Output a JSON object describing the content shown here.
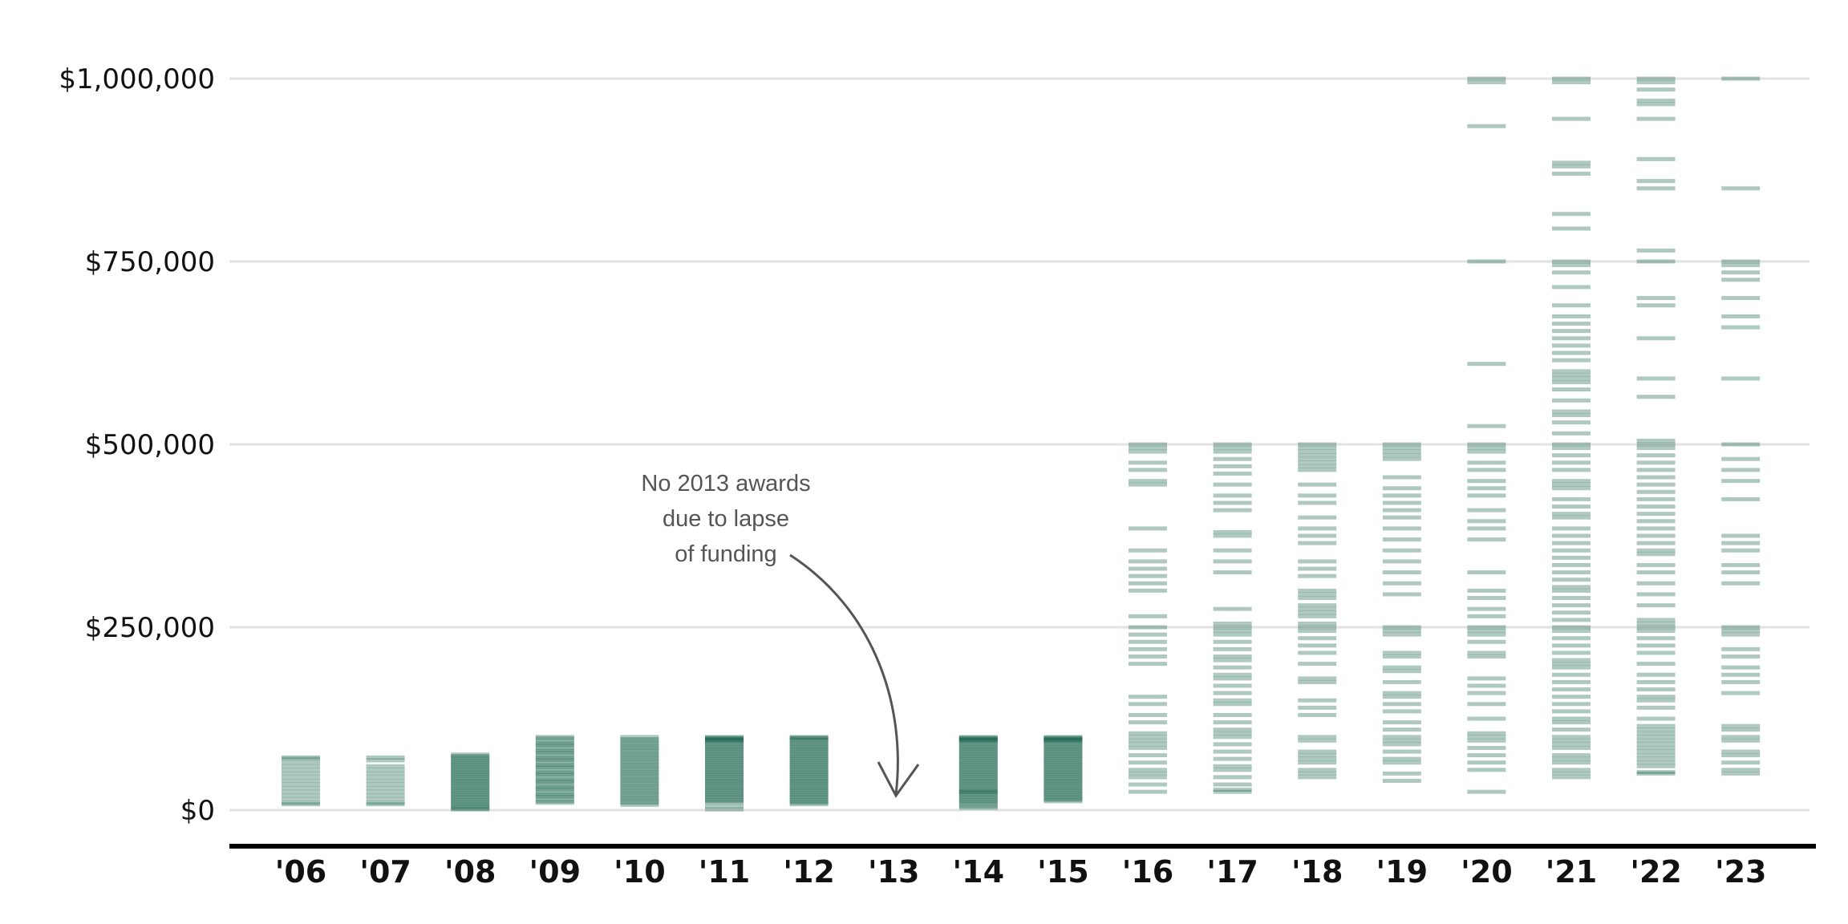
{
  "chart_data": {
    "type": "strip",
    "categories": [
      "'06",
      "'07",
      "'08",
      "'09",
      "'10",
      "'11",
      "'12",
      "'13",
      "'14",
      "'15",
      "'16",
      "'17",
      "'18",
      "'19",
      "'20",
      "'21",
      "'22",
      "'23"
    ],
    "yticks": [
      {
        "value": 0,
        "label": "$0"
      },
      {
        "value": 250000,
        "label": "$250,000"
      },
      {
        "value": 500000,
        "label": "$500,000"
      },
      {
        "value": 750000,
        "label": "$750,000"
      },
      {
        "value": 1000000,
        "label": "$1,000,000"
      }
    ],
    "ylim": [
      -50000,
      1020000
    ],
    "grid": true,
    "color": "#0b5a43",
    "annotation": {
      "lines": [
        "No 2013 awards",
        "due to lapse",
        "of funding"
      ],
      "category": "'13"
    },
    "series": [
      {
        "category": "'06",
        "values": [
          72000,
          70000,
          65000,
          60000,
          55000,
          50000,
          45000,
          40000,
          35000,
          30000,
          25000,
          20000,
          15000,
          10000,
          8000
        ]
      },
      {
        "category": "'07",
        "values": [
          72000,
          68000,
          60000,
          55000,
          50000,
          45000,
          40000,
          35000,
          30000,
          25000,
          20000,
          15000,
          10000,
          8000
        ]
      },
      {
        "category": "'08",
        "values": [
          76000,
          74000,
          72000,
          70000,
          68000,
          66000,
          64000,
          62000,
          60000,
          58000,
          56000,
          54000,
          52000,
          50000,
          48000,
          46000,
          44000,
          42000,
          40000,
          38000,
          36000,
          34000,
          32000,
          30000,
          28000,
          26000,
          24000,
          22000,
          20000,
          18000,
          16000,
          14000,
          12000,
          10000,
          8000,
          6000,
          4000,
          2000,
          1000
        ]
      },
      {
        "category": "'09",
        "values": [
          100000,
          98000,
          95000,
          92000,
          90000,
          88000,
          85000,
          82000,
          80000,
          78000,
          75000,
          72000,
          70000,
          68000,
          65000,
          62000,
          60000,
          58000,
          55000,
          52000,
          50000,
          48000,
          45000,
          42000,
          40000,
          38000,
          35000,
          32000,
          30000,
          28000,
          25000,
          22000,
          20000,
          18000,
          15000,
          12000,
          10000
        ]
      },
      {
        "category": "'10",
        "values": [
          100000,
          97000,
          95000,
          92000,
          90000,
          87000,
          85000,
          82000,
          80000,
          77000,
          75000,
          72000,
          70000,
          67000,
          65000,
          62000,
          60000,
          57000,
          55000,
          52000,
          50000,
          47000,
          45000,
          42000,
          40000,
          37000,
          35000,
          32000,
          30000,
          27000,
          25000,
          22000,
          20000,
          17000,
          15000,
          12000,
          10000,
          7000
        ]
      },
      {
        "category": "'11",
        "values": [
          100000,
          99000,
          98000,
          97000,
          96000,
          95000,
          94000,
          92000,
          90000,
          88000,
          86000,
          84000,
          82000,
          80000,
          78000,
          76000,
          74000,
          72000,
          70000,
          68000,
          66000,
          64000,
          62000,
          60000,
          58000,
          56000,
          54000,
          52000,
          50000,
          48000,
          46000,
          44000,
          42000,
          40000,
          38000,
          36000,
          34000,
          32000,
          30000,
          28000,
          26000,
          24000,
          22000,
          20000,
          18000,
          16000,
          14000,
          12000,
          10000,
          5000,
          1000
        ]
      },
      {
        "category": "'12",
        "values": [
          100000,
          99000,
          98000,
          96000,
          94000,
          92000,
          90000,
          88000,
          86000,
          84000,
          82000,
          80000,
          78000,
          76000,
          74000,
          72000,
          70000,
          68000,
          66000,
          64000,
          62000,
          60000,
          58000,
          56000,
          54000,
          52000,
          50000,
          48000,
          46000,
          44000,
          42000,
          40000,
          38000,
          36000,
          34000,
          32000,
          30000,
          28000,
          26000,
          24000,
          22000,
          20000,
          18000,
          16000,
          14000,
          12000,
          10000,
          8000
        ]
      },
      {
        "category": "'13",
        "values": []
      },
      {
        "category": "'14",
        "values": [
          100000,
          99000,
          98000,
          97000,
          96000,
          95000,
          94000,
          92000,
          90000,
          88000,
          86000,
          84000,
          82000,
          80000,
          78000,
          76000,
          74000,
          72000,
          70000,
          68000,
          66000,
          64000,
          62000,
          60000,
          58000,
          56000,
          54000,
          52000,
          50000,
          48000,
          46000,
          44000,
          42000,
          40000,
          38000,
          36000,
          34000,
          32000,
          30000,
          28000,
          26000,
          25000,
          24000,
          22000,
          20000,
          18000,
          16000,
          14000,
          12000,
          10000,
          8000,
          5000,
          3000
        ]
      },
      {
        "category": "'15",
        "values": [
          100000,
          99000,
          98000,
          97000,
          96000,
          95000,
          94000,
          92000,
          90000,
          88000,
          86000,
          84000,
          82000,
          80000,
          78000,
          76000,
          74000,
          72000,
          70000,
          68000,
          66000,
          64000,
          62000,
          60000,
          58000,
          56000,
          54000,
          52000,
          50000,
          48000,
          46000,
          44000,
          42000,
          40000,
          38000,
          36000,
          34000,
          32000,
          30000,
          28000,
          26000,
          24000,
          22000,
          20000,
          18000,
          16000,
          14000,
          12000
        ]
      },
      {
        "category": "'16",
        "values": [
          500000,
          495000,
          490000,
          475000,
          465000,
          450000,
          445000,
          385000,
          355000,
          340000,
          330000,
          320000,
          310000,
          300000,
          265000,
          250000,
          240000,
          230000,
          220000,
          210000,
          200000,
          155000,
          145000,
          130000,
          120000,
          105000,
          100000,
          95000,
          90000,
          85000,
          75000,
          65000,
          55000,
          50000,
          45000,
          35000,
          25000
        ]
      },
      {
        "category": "'17",
        "values": [
          500000,
          495000,
          490000,
          480000,
          470000,
          460000,
          445000,
          430000,
          420000,
          410000,
          380000,
          375000,
          355000,
          340000,
          325000,
          275000,
          255000,
          250000,
          245000,
          240000,
          230000,
          220000,
          210000,
          205000,
          195000,
          185000,
          180000,
          170000,
          160000,
          150000,
          145000,
          130000,
          120000,
          110000,
          105000,
          100000,
          90000,
          80000,
          70000,
          60000,
          55000,
          45000,
          35000,
          28000,
          25000
        ]
      },
      {
        "category": "'18",
        "values": [
          500000,
          495000,
          490000,
          485000,
          480000,
          475000,
          470000,
          465000,
          445000,
          430000,
          420000,
          400000,
          385000,
          375000,
          365000,
          340000,
          330000,
          320000,
          300000,
          295000,
          290000,
          280000,
          275000,
          270000,
          265000,
          255000,
          250000,
          245000,
          235000,
          225000,
          215000,
          200000,
          180000,
          175000,
          150000,
          140000,
          130000,
          100000,
          95000,
          80000,
          75000,
          70000,
          65000,
          55000,
          50000,
          45000
        ]
      },
      {
        "category": "'19",
        "values": [
          500000,
          495000,
          490000,
          485000,
          480000,
          455000,
          440000,
          430000,
          420000,
          410000,
          400000,
          385000,
          370000,
          355000,
          340000,
          325000,
          310000,
          295000,
          250000,
          245000,
          240000,
          215000,
          210000,
          195000,
          190000,
          175000,
          160000,
          155000,
          145000,
          135000,
          120000,
          110000,
          100000,
          95000,
          90000,
          80000,
          70000,
          65000,
          50000,
          40000
        ]
      },
      {
        "category": "'20",
        "values": [
          1000000,
          995000,
          935000,
          750000,
          610000,
          525000,
          500000,
          495000,
          490000,
          475000,
          465000,
          450000,
          440000,
          430000,
          410000,
          395000,
          385000,
          370000,
          325000,
          300000,
          290000,
          275000,
          265000,
          250000,
          245000,
          240000,
          230000,
          215000,
          210000,
          180000,
          170000,
          160000,
          145000,
          125000,
          105000,
          100000,
          95000,
          85000,
          75000,
          65000,
          55000,
          25000
        ]
      },
      {
        "category": "'21",
        "values": [
          1000000,
          995000,
          945000,
          885000,
          880000,
          870000,
          815000,
          795000,
          750000,
          745000,
          735000,
          715000,
          690000,
          675000,
          665000,
          655000,
          645000,
          635000,
          625000,
          615000,
          600000,
          595000,
          590000,
          585000,
          575000,
          560000,
          545000,
          540000,
          530000,
          515000,
          500000,
          495000,
          485000,
          475000,
          465000,
          450000,
          445000,
          440000,
          425000,
          415000,
          405000,
          400000,
          385000,
          375000,
          365000,
          355000,
          345000,
          335000,
          325000,
          315000,
          305000,
          300000,
          290000,
          280000,
          270000,
          260000,
          250000,
          245000,
          235000,
          225000,
          215000,
          205000,
          200000,
          195000,
          185000,
          175000,
          165000,
          155000,
          145000,
          135000,
          125000,
          120000,
          110000,
          100000,
          95000,
          90000,
          85000,
          75000,
          70000,
          65000,
          55000,
          50000,
          45000
        ]
      },
      {
        "category": "'22",
        "values": [
          1000000,
          995000,
          985000,
          970000,
          965000,
          945000,
          890000,
          860000,
          850000,
          765000,
          750000,
          700000,
          690000,
          645000,
          590000,
          565000,
          505000,
          500000,
          495000,
          485000,
          475000,
          465000,
          455000,
          445000,
          435000,
          425000,
          415000,
          405000,
          395000,
          385000,
          375000,
          365000,
          355000,
          350000,
          335000,
          325000,
          310000,
          295000,
          280000,
          260000,
          255000,
          250000,
          245000,
          235000,
          225000,
          215000,
          200000,
          185000,
          175000,
          165000,
          155000,
          150000,
          140000,
          125000,
          115000,
          110000,
          105000,
          100000,
          95000,
          90000,
          85000,
          80000,
          75000,
          70000,
          65000,
          60000,
          52000,
          50000
        ]
      },
      {
        "category": "'23",
        "values": [
          1000000,
          850000,
          750000,
          745000,
          735000,
          725000,
          700000,
          675000,
          660000,
          590000,
          500000,
          480000,
          465000,
          450000,
          425000,
          375000,
          365000,
          355000,
          335000,
          325000,
          310000,
          250000,
          245000,
          240000,
          220000,
          210000,
          195000,
          185000,
          175000,
          160000,
          115000,
          110000,
          100000,
          95000,
          80000,
          75000,
          65000,
          55000,
          50000
        ]
      }
    ]
  }
}
